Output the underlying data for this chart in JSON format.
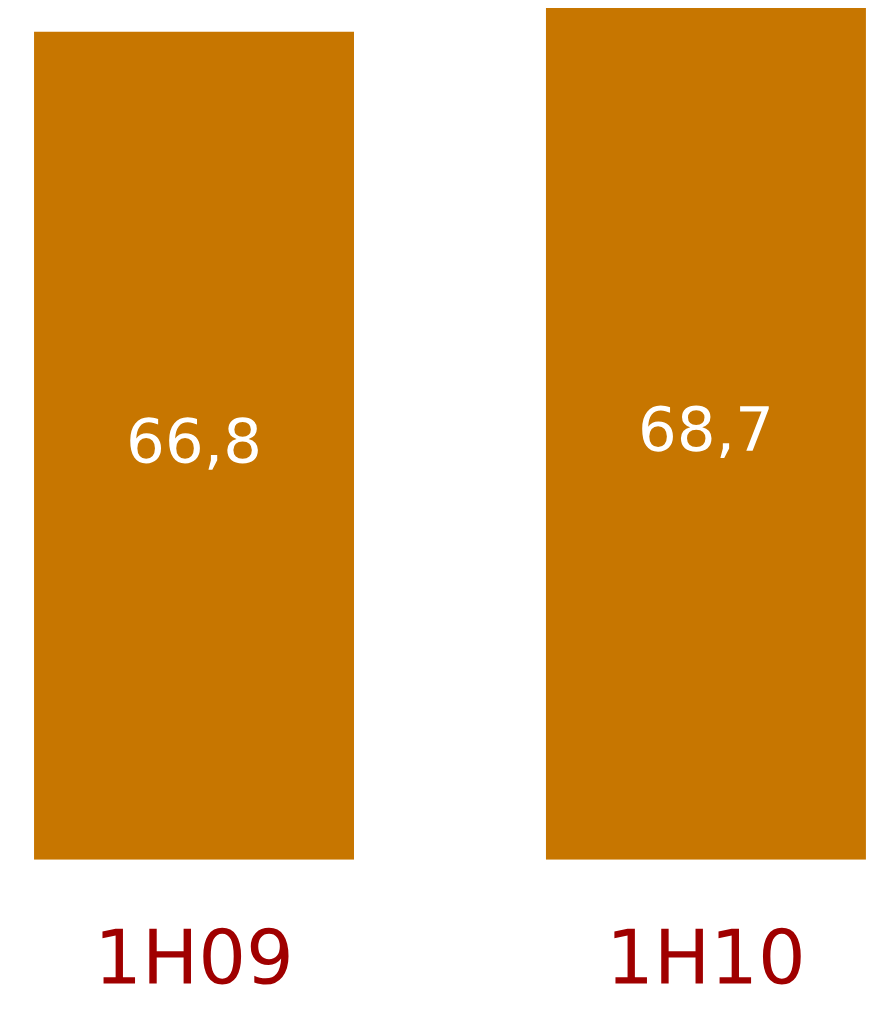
{
  "chart_data": {
    "type": "bar",
    "categories": [
      "1H09",
      "1H10"
    ],
    "values": [
      66.8,
      68.7
    ],
    "value_labels": [
      "66,8",
      "68,7"
    ],
    "color": "#c77600",
    "tick_labels": "x",
    "grid": false,
    "legend": false
  }
}
